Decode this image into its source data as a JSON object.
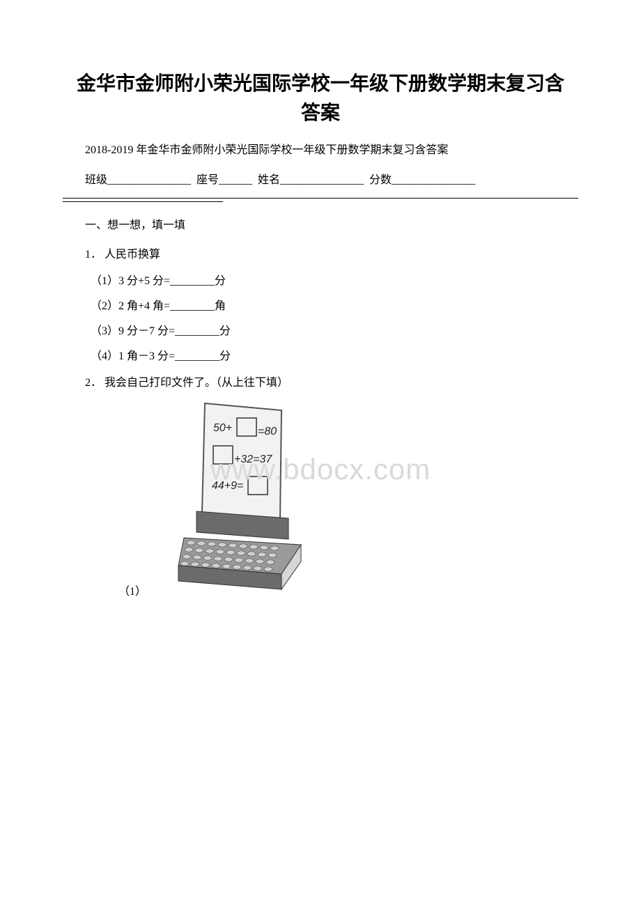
{
  "title_line1": "金华市金师附小荣光国际学校一年级下册数学期末复习含",
  "title_line2": "答案",
  "subtitle": "2018-2019 年金华市金师附小荣光国际学校一年级下册数学期末复习含答案",
  "blanks": {
    "class_label": "班级",
    "seat_label": "座号",
    "name_label": "姓名",
    "score_label": "分数"
  },
  "section1": "一、想一想，填一填",
  "q1": "1． 人民币换算",
  "q1_sub": [
    "（1）3 分+5 分=________分",
    "（2）2 角+4 角=________角",
    "（3）9 分－7 分=________分",
    "（4）1 角－3 分=________分"
  ],
  "q2": "2． 我会自己打印文件了。（从上往下填）",
  "q2_sub_label": "（1）",
  "watermark": "www.bdocx.com",
  "printer": {
    "line1_left": "50+",
    "line1_right": "=80",
    "line2_left": "",
    "line2_right": "+32=37",
    "line3_left": "44+9=",
    "line3_right": "",
    "paper_fill": "#f2f2f2",
    "paper_stroke": "#555555",
    "box_stroke": "#333333",
    "body_fill": "#9a9a9a",
    "body_dark": "#6b6b6b",
    "body_light": "#d6d6d6",
    "key_fill": "#cfcfcf",
    "text_color": "#222222",
    "font_family": "Arial, sans-serif",
    "font_size": 16
  }
}
